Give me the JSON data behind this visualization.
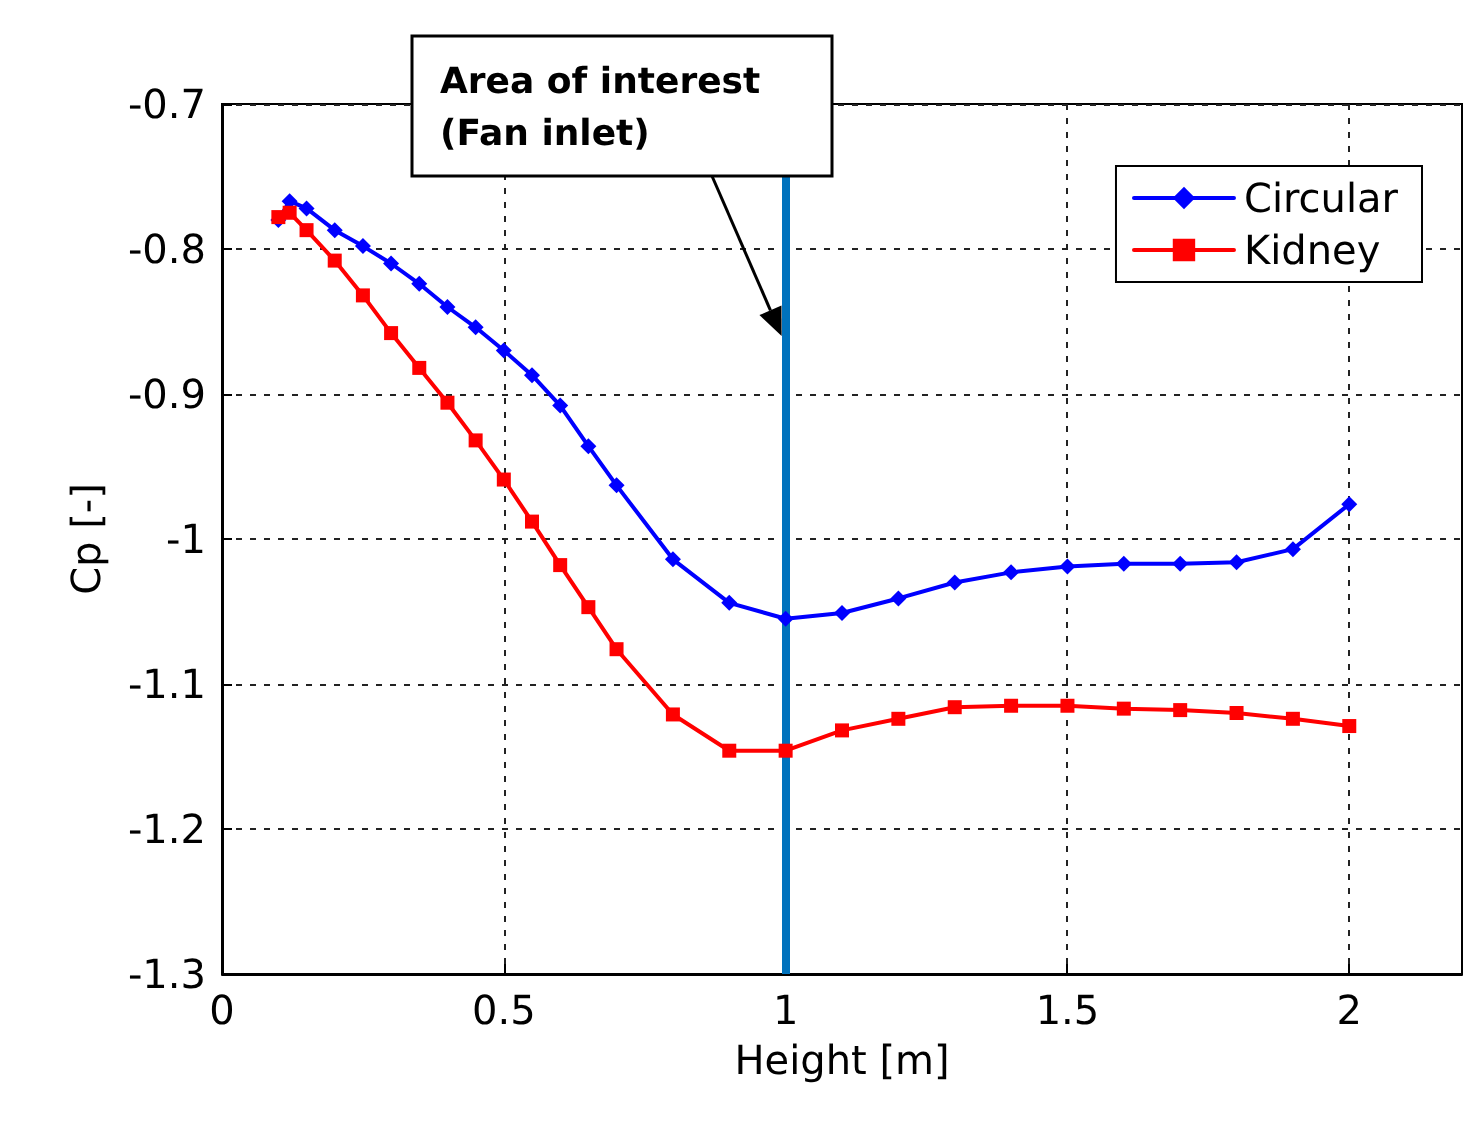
{
  "chart_data": {
    "type": "line",
    "xlabel": "Height [m]",
    "ylabel": "Cp [-]",
    "xlim": [
      0,
      2.2
    ],
    "ylim": [
      -1.3,
      -0.7
    ],
    "xticks": [
      0,
      0.5,
      1,
      1.5,
      2
    ],
    "yticks": [
      -1.3,
      -1.2,
      -1.1,
      -1,
      -0.9,
      -0.8,
      -0.7
    ],
    "grid": true,
    "legend": "top right",
    "line_style": "solid",
    "x": [
      0.1,
      0.12,
      0.15,
      0.2,
      0.25,
      0.3,
      0.35,
      0.4,
      0.45,
      0.5,
      0.55,
      0.6,
      0.65,
      0.7,
      0.8,
      0.9,
      1,
      1.1,
      1.2,
      1.3,
      1.4,
      1.5,
      1.6,
      1.7,
      1.8,
      1.9,
      2
    ],
    "series": [
      {
        "name": "Circular",
        "color": "#0000ff",
        "marker": "diamond",
        "values": [
          -0.78,
          -0.767,
          -0.772,
          -0.787,
          -0.798,
          -0.81,
          -0.824,
          -0.84,
          -0.854,
          -0.87,
          -0.887,
          -0.908,
          -0.936,
          -0.963,
          -1.014,
          -1.044,
          -1.055,
          -1.051,
          -1.041,
          -1.03,
          -1.023,
          -1.019,
          -1.017,
          -1.017,
          -1.016,
          -1.007,
          -0.976
        ]
      },
      {
        "name": "Kidney",
        "color": "#ff0000",
        "marker": "square",
        "values": [
          -0.778,
          -0.775,
          -0.787,
          -0.808,
          -0.832,
          -0.858,
          -0.882,
          -0.906,
          -0.932,
          -0.959,
          -0.988,
          -1.018,
          -1.047,
          -1.076,
          -1.121,
          -1.146,
          -1.146,
          -1.132,
          -1.124,
          -1.116,
          -1.115,
          -1.115,
          -1.117,
          -1.118,
          -1.12,
          -1.124,
          -1.129
        ]
      }
    ],
    "ref_lines": [
      {
        "axis": "x",
        "value": 1,
        "color": "#0072bd",
        "line_style": "solid"
      }
    ],
    "annotations": [
      "Area of interest\n(Fan inlet)"
    ]
  }
}
